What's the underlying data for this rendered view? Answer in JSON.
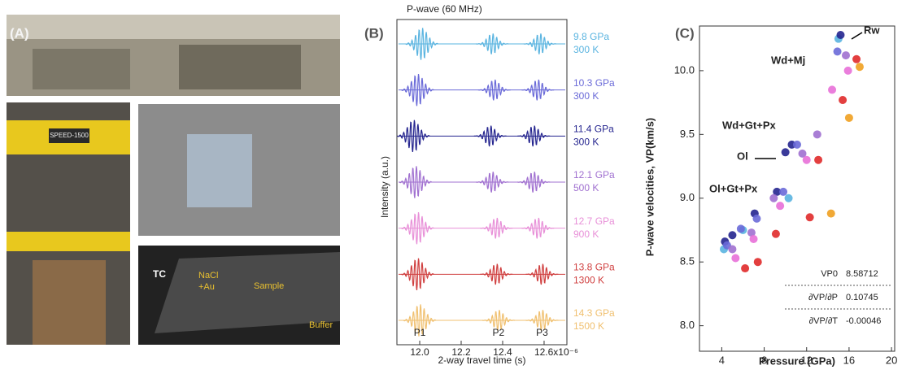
{
  "panel_labels": [
    "(A)",
    "(B)",
    "(C)"
  ],
  "panel_a": {
    "press_label": "SPEED-1500",
    "image_labels": [
      "TC",
      "NaCl",
      "+Au",
      "Sample",
      "Buffer"
    ]
  },
  "chart_data": [
    {
      "type": "waveform",
      "title": "P-wave (60 MHz)",
      "y_label": "Intensity (a.u.)",
      "x_label": "2-way travel time (s)",
      "xlim": [
        11.89,
        12.71
      ],
      "xticks": [
        {
          "value": 12.0,
          "label": "12.0"
        },
        {
          "value": 12.2,
          "label": "12.2"
        },
        {
          "value": 12.4,
          "label": "12.4"
        },
        {
          "value": 12.6,
          "label": "12.6x10⁻⁶"
        }
      ],
      "peak_labels": [
        "P1",
        "P2",
        "P3"
      ],
      "series": [
        {
          "name": "9.8 GPa",
          "condition": "300 K",
          "color": "#5ab4e0",
          "values": [
            12.01,
            12.35,
            12.58
          ]
        },
        {
          "name": "10.3 GPa",
          "condition": "300 K",
          "color": "#6a6ad8",
          "values": [
            11.99,
            12.36,
            12.57
          ]
        },
        {
          "name": "11.4 GPa",
          "condition": "300 K",
          "color": "#25258f",
          "values": [
            11.97,
            12.34,
            12.55
          ]
        },
        {
          "name": "12.1 GPa",
          "condition": "500 K",
          "color": "#a070d0",
          "values": [
            11.98,
            12.35,
            12.55
          ]
        },
        {
          "name": "12.7 GPa",
          "condition": "900 K",
          "color": "#e890d8",
          "values": [
            11.99,
            12.37,
            12.57
          ]
        },
        {
          "name": "13.8 GPa",
          "condition": "1300 K",
          "color": "#d04040",
          "values": [
            11.99,
            12.37,
            12.59
          ]
        },
        {
          "name": "14.3 GPa",
          "condition": "1500 K",
          "color": "#f0c070",
          "values": [
            12.0,
            12.38,
            12.59
          ]
        }
      ]
    },
    {
      "type": "scatter",
      "x_label": "Pressure (GPa)",
      "y_label": "P-wave velocities, VP(km/s)",
      "xlim": [
        1.9,
        20.3
      ],
      "ylim": [
        7.8,
        10.35
      ],
      "xticks": [
        4,
        8,
        12,
        16,
        20
      ],
      "yticks": [
        {
          "value": 8.0,
          "label": "8.0"
        },
        8.5,
        {
          "value": 9.0,
          "label": "9.0"
        },
        9.5,
        {
          "value": 10.0,
          "label": "10.0"
        }
      ],
      "annotations": [
        "Rw",
        "Wd+Mj",
        "Wd+Gt+Px",
        "Ol",
        "Ol+Gt+Px"
      ],
      "series": [
        {
          "color": "#5ab4e0",
          "x": [
            4.2,
            6.0,
            10.3,
            15.0
          ],
          "values": [
            8.6,
            8.75,
            9.0,
            10.25
          ]
        },
        {
          "color": "#25258f",
          "x": [
            4.3,
            5.0,
            7.1,
            9.2,
            10.0,
            10.6,
            15.2
          ],
          "values": [
            8.66,
            8.71,
            8.88,
            9.05,
            9.36,
            9.42,
            10.28
          ]
        },
        {
          "color": "#6a6ad8",
          "x": [
            4.5,
            5.8,
            7.3,
            9.8,
            11.1,
            14.9
          ],
          "values": [
            8.63,
            8.76,
            8.84,
            9.05,
            9.42,
            10.15
          ]
        },
        {
          "color": "#a070d0",
          "x": [
            5.0,
            6.8,
            8.9,
            11.6,
            13.0,
            15.7
          ],
          "values": [
            8.6,
            8.73,
            9.0,
            9.35,
            9.5,
            10.12
          ]
        },
        {
          "color": "#e870d8",
          "x": [
            5.3,
            7.0,
            9.5,
            12.0,
            14.4,
            15.9
          ],
          "values": [
            8.53,
            8.68,
            8.94,
            9.3,
            9.85,
            10.0
          ]
        },
        {
          "color": "#e02a2a",
          "x": [
            6.2,
            7.4,
            9.1,
            12.3,
            13.1,
            15.4,
            16.7
          ],
          "values": [
            8.45,
            8.5,
            8.72,
            8.85,
            9.3,
            9.77,
            10.09
          ]
        },
        {
          "color": "#f0a020",
          "x": [
            14.3,
            16.0,
            17.0
          ],
          "values": [
            8.88,
            9.63,
            10.03
          ]
        }
      ],
      "table": [
        [
          "VP0",
          "8.58712"
        ],
        [
          "∂VP/∂P",
          "0.10745"
        ],
        [
          "∂VP/∂T",
          "-0.00046"
        ]
      ]
    }
  ]
}
